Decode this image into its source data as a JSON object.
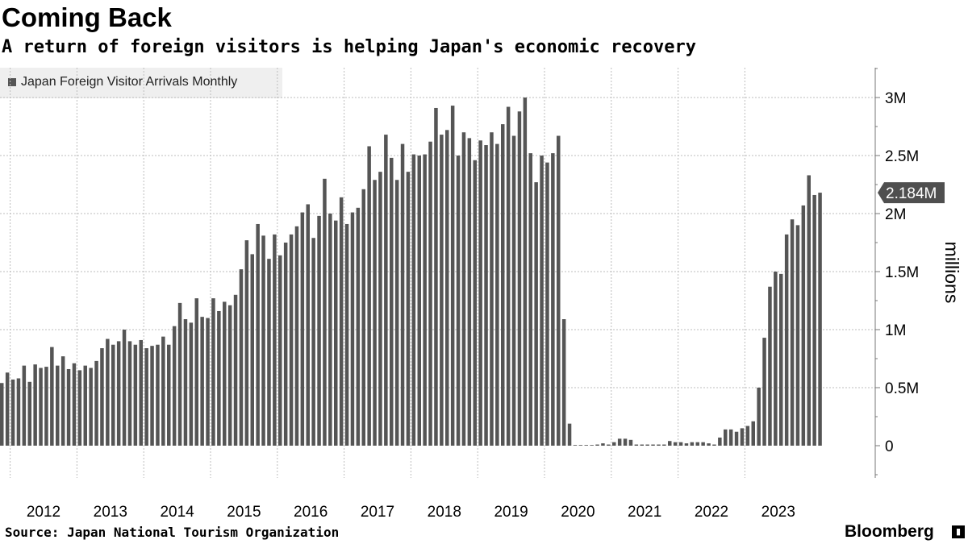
{
  "chart_data": {
    "type": "bar",
    "title": "Coming Back",
    "subtitle": "A return of foreign visitors is helping Japan's economic recovery",
    "legend": "Japan Foreign Visitor Arrivals Monthly",
    "ylabel": "millions",
    "ylim": [
      -0.25,
      3.25
    ],
    "y_ticks": [
      {
        "value": 0,
        "label": "0"
      },
      {
        "value": 0.5,
        "label": "0.5M"
      },
      {
        "value": 1,
        "label": "1M"
      },
      {
        "value": 1.5,
        "label": "1.5M"
      },
      {
        "value": 2,
        "label": "2M"
      },
      {
        "value": 2.5,
        "label": "2.5M"
      },
      {
        "value": 3,
        "label": "3M"
      }
    ],
    "x_labels": [
      "2012",
      "2013",
      "2014",
      "2015",
      "2016",
      "2017",
      "2018",
      "2019",
      "2020",
      "2021",
      "2022",
      "2023"
    ],
    "start": "2011-11",
    "last_value_label": "2.184M",
    "values": [
      0.54,
      0.63,
      0.57,
      0.58,
      0.69,
      0.55,
      0.7,
      0.67,
      0.68,
      0.85,
      0.69,
      0.77,
      0.66,
      0.71,
      0.65,
      0.69,
      0.67,
      0.73,
      0.84,
      0.92,
      0.87,
      0.9,
      1.0,
      0.9,
      0.87,
      0.91,
      0.84,
      0.86,
      0.87,
      0.94,
      0.87,
      1.03,
      1.23,
      1.09,
      1.06,
      1.27,
      1.11,
      1.1,
      1.27,
      1.16,
      1.24,
      1.21,
      1.3,
      1.52,
      1.77,
      1.65,
      1.91,
      1.81,
      1.61,
      1.82,
      1.64,
      1.75,
      1.82,
      1.89,
      2.01,
      2.08,
      1.79,
      1.98,
      2.3,
      2.0,
      1.94,
      2.14,
      1.91,
      2.01,
      2.05,
      2.21,
      2.58,
      2.29,
      2.36,
      2.68,
      2.48,
      2.29,
      2.6,
      2.36,
      2.51,
      2.5,
      2.51,
      2.62,
      2.91,
      2.68,
      2.72,
      2.93,
      2.5,
      2.7,
      2.65,
      2.46,
      2.63,
      2.59,
      2.7,
      2.6,
      2.77,
      2.92,
      2.67,
      2.88,
      3.0,
      2.52,
      2.27,
      2.5,
      2.44,
      2.52,
      2.67,
      1.09,
      0.19,
      0.003,
      0.002,
      0.003,
      0.004,
      0.01,
      0.02,
      0.01,
      0.03,
      0.06,
      0.06,
      0.05,
      0.01,
      0.01,
      0.01,
      0.01,
      0.01,
      0.01,
      0.04,
      0.03,
      0.03,
      0.02,
      0.03,
      0.03,
      0.03,
      0.02,
      0.01,
      0.07,
      0.14,
      0.14,
      0.12,
      0.15,
      0.17,
      0.21,
      0.5,
      0.93,
      1.37,
      1.5,
      1.48,
      1.82,
      1.95,
      1.9,
      2.07,
      2.33,
      2.16,
      2.18
    ]
  },
  "footer": {
    "source": "Source: Japan National Tourism Organization",
    "brand": "Bloomberg"
  },
  "colors": {
    "bar": "#555555",
    "grid": "#bdbdbd",
    "axis": "#777777",
    "last_badge": "#4f4f4f"
  }
}
